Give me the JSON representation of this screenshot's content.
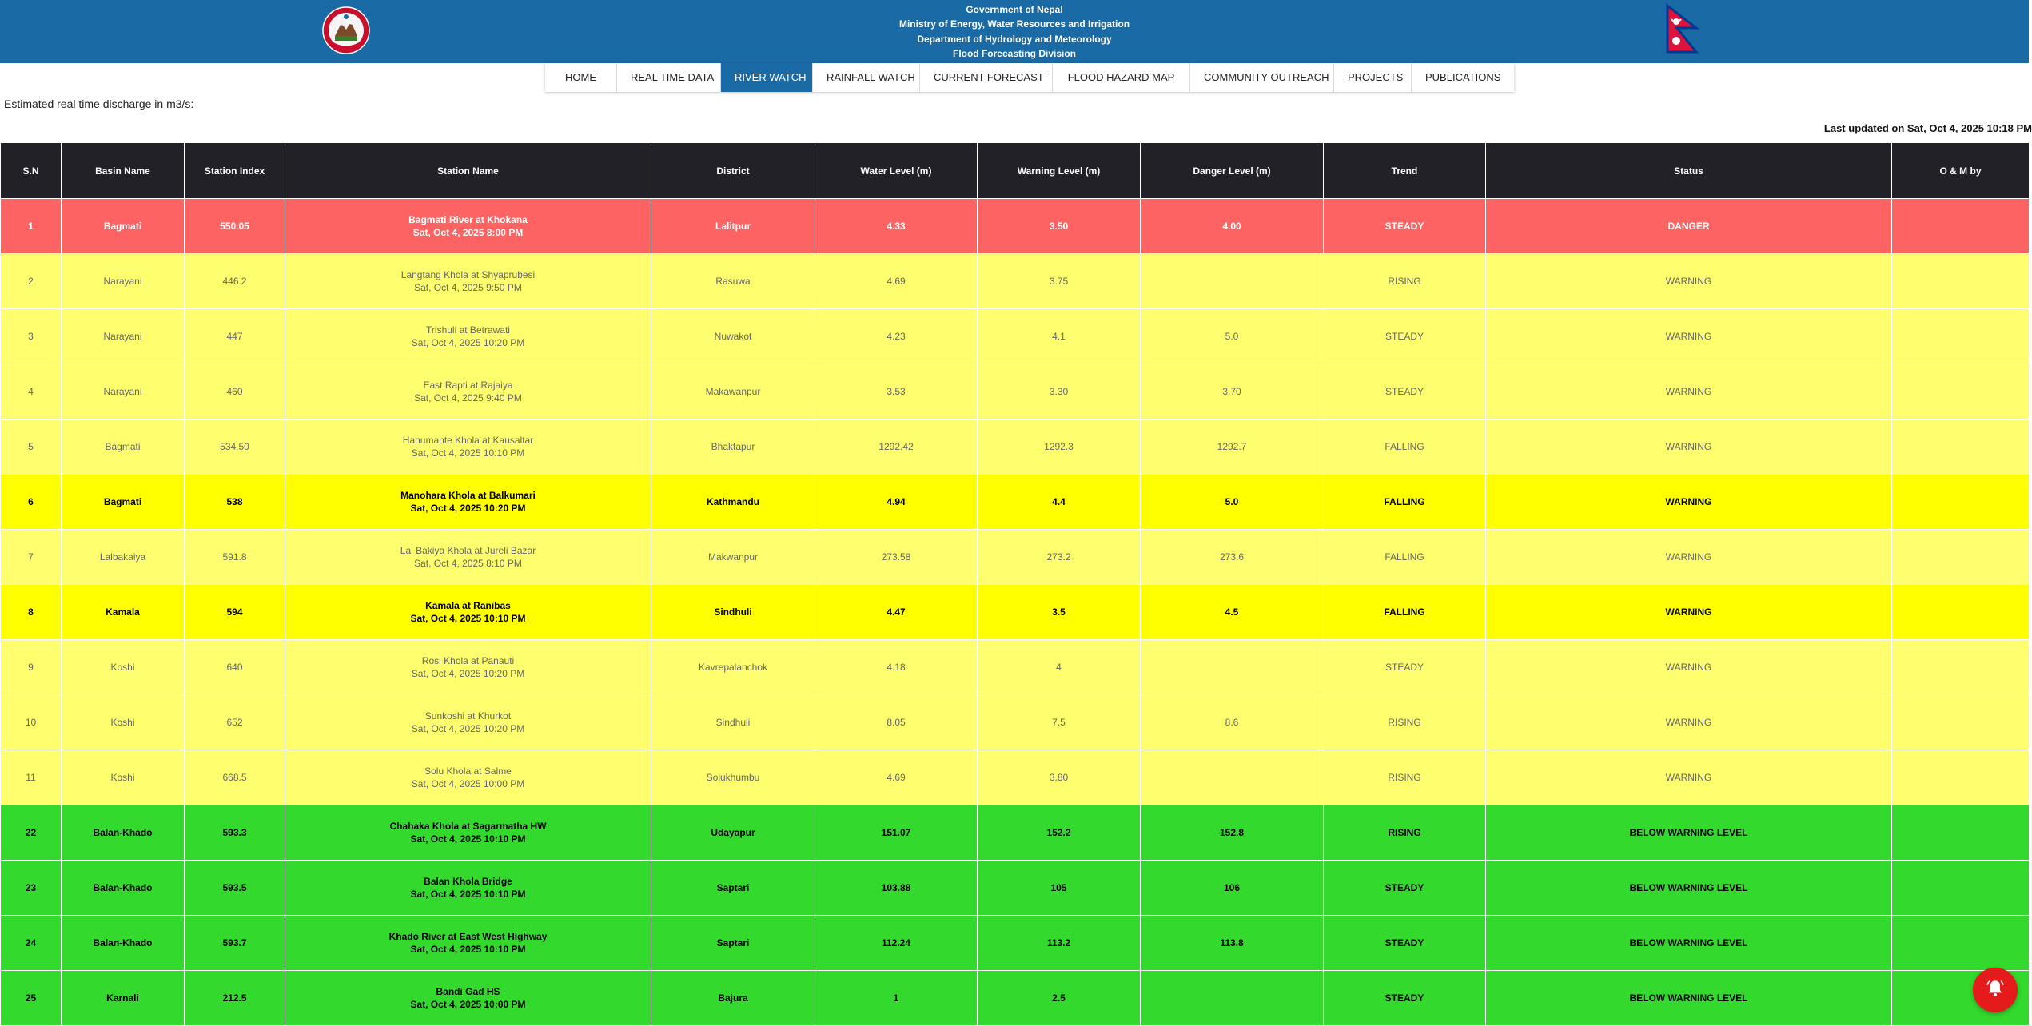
{
  "header": {
    "lines": [
      "Government of Nepal",
      "Ministry of Energy, Water Resources and Irrigation",
      "Department of Hydrology and Meteorology",
      "Flood Forecasting Division"
    ]
  },
  "nav": {
    "items": [
      {
        "label": "HOME",
        "active": false
      },
      {
        "label": "REAL TIME DATA",
        "active": false
      },
      {
        "label": "RIVER WATCH",
        "active": true
      },
      {
        "label": "RAINFALL WATCH",
        "active": false
      },
      {
        "label": "CURRENT FORECAST",
        "active": false
      },
      {
        "label": "FLOOD HAZARD MAP",
        "active": false
      },
      {
        "label": "COMMUNITY OUTREACH",
        "active": false
      },
      {
        "label": "PROJECTS",
        "active": false
      },
      {
        "label": "PUBLICATIONS",
        "active": false
      }
    ]
  },
  "subtitle": "Estimated real time discharge in m3/s:",
  "last_updated": "Last updated on Sat, Oct 4, 2025 10:18 PM",
  "table": {
    "headers": [
      "S.N",
      "Basin Name",
      "Station Index",
      "Station Name",
      "District",
      "Water Level (m)",
      "Warning Level (m)",
      "Danger Level (m)",
      "Trend",
      "Status",
      "O & M by"
    ],
    "rows": [
      {
        "sn": "1",
        "basin": "Bagmati",
        "index": "550.05",
        "station": "Bagmati River at Khokana",
        "time": "Sat, Oct 4, 2025 8:00 PM",
        "district": "Lalitpur",
        "water": "4.33",
        "warning": "3.50",
        "danger": "4.00",
        "trend": "STEADY",
        "status": "DANGER",
        "om": "",
        "style": "danger"
      },
      {
        "sn": "2",
        "basin": "Narayani",
        "index": "446.2",
        "station": "Langtang Khola at Shyaprubesi",
        "time": "Sat, Oct 4, 2025 9:50 PM",
        "district": "Rasuwa",
        "water": "4.69",
        "warning": "3.75",
        "danger": "",
        "trend": "RISING",
        "status": "WARNING",
        "om": "",
        "style": "warn-light"
      },
      {
        "sn": "3",
        "basin": "Narayani",
        "index": "447",
        "station": "Trishuli at Betrawati",
        "time": "Sat, Oct 4, 2025 10:20 PM",
        "district": "Nuwakot",
        "water": "4.23",
        "warning": "4.1",
        "danger": "5.0",
        "trend": "STEADY",
        "status": "WARNING",
        "om": "",
        "style": "warn-light"
      },
      {
        "sn": "4",
        "basin": "Narayani",
        "index": "460",
        "station": "East Rapti at Rajaiya",
        "time": "Sat, Oct 4, 2025 9:40 PM",
        "district": "Makawanpur",
        "water": "3.53",
        "warning": "3.30",
        "danger": "3.70",
        "trend": "STEADY",
        "status": "WARNING",
        "om": "",
        "style": "warn-light"
      },
      {
        "sn": "5",
        "basin": "Bagmati",
        "index": "534.50",
        "station": "Hanumante Khola at Kausaltar",
        "time": "Sat, Oct 4, 2025 10:10 PM",
        "district": "Bhaktapur",
        "water": "1292.42",
        "warning": "1292.3",
        "danger": "1292.7",
        "trend": "FALLING",
        "status": "WARNING",
        "om": "",
        "style": "warn-light"
      },
      {
        "sn": "6",
        "basin": "Bagmati",
        "index": "538",
        "station": "Manohara Khola at Balkumari",
        "time": "Sat, Oct 4, 2025 10:20 PM",
        "district": "Kathmandu",
        "water": "4.94",
        "warning": "4.4",
        "danger": "5.0",
        "trend": "FALLING",
        "status": "WARNING",
        "om": "",
        "style": "warn-strong"
      },
      {
        "sn": "7",
        "basin": "Lalbakaiya",
        "index": "591.8",
        "station": "Lal Bakiya Khola at Jureli Bazar",
        "time": "Sat, Oct 4, 2025 8:10 PM",
        "district": "Makwanpur",
        "water": "273.58",
        "warning": "273.2",
        "danger": "273.6",
        "trend": "FALLING",
        "status": "WARNING",
        "om": "",
        "style": "warn-light"
      },
      {
        "sn": "8",
        "basin": "Kamala",
        "index": "594",
        "station": "Kamala at Ranibas",
        "time": "Sat, Oct 4, 2025 10:10 PM",
        "district": "Sindhuli",
        "water": "4.47",
        "warning": "3.5",
        "danger": "4.5",
        "trend": "FALLING",
        "status": "WARNING",
        "om": "",
        "style": "warn-strong"
      },
      {
        "sn": "9",
        "basin": "Koshi",
        "index": "640",
        "station": "Rosi Khola at Panauti",
        "time": "Sat, Oct 4, 2025 10:20 PM",
        "district": "Kavrepalanchok",
        "water": "4.18",
        "warning": "4",
        "danger": "",
        "trend": "STEADY",
        "status": "WARNING",
        "om": "",
        "style": "warn-light"
      },
      {
        "sn": "10",
        "basin": "Koshi",
        "index": "652",
        "station": "Sunkoshi at Khurkot",
        "time": "Sat, Oct 4, 2025 10:20 PM",
        "district": "Sindhuli",
        "water": "8.05",
        "warning": "7.5",
        "danger": "8.6",
        "trend": "RISING",
        "status": "WARNING",
        "om": "",
        "style": "warn-light"
      },
      {
        "sn": "11",
        "basin": "Koshi",
        "index": "668.5",
        "station": "Solu Khola at Salme",
        "time": "Sat, Oct 4, 2025 10:00 PM",
        "district": "Solukhumbu",
        "water": "4.69",
        "warning": "3.80",
        "danger": "",
        "trend": "RISING",
        "status": "WARNING",
        "om": "",
        "style": "warn-light"
      },
      {
        "sn": "22",
        "basin": "Balan-Khado",
        "index": "593.3",
        "station": "Chahaka Khola at Sagarmatha HW",
        "time": "Sat, Oct 4, 2025 10:10 PM",
        "district": "Udayapur",
        "water": "151.07",
        "warning": "152.2",
        "danger": "152.8",
        "trend": "RISING",
        "status": "BELOW WARNING LEVEL",
        "om": "",
        "style": "below"
      },
      {
        "sn": "23",
        "basin": "Balan-Khado",
        "index": "593.5",
        "station": "Balan Khola Bridge",
        "time": "Sat, Oct 4, 2025 10:10 PM",
        "district": "Saptari",
        "water": "103.88",
        "warning": "105",
        "danger": "106",
        "trend": "STEADY",
        "status": "BELOW WARNING LEVEL",
        "om": "",
        "style": "below"
      },
      {
        "sn": "24",
        "basin": "Balan-Khado",
        "index": "593.7",
        "station": "Khado River at East West Highway",
        "time": "Sat, Oct 4, 2025 10:10 PM",
        "district": "Saptari",
        "water": "112.24",
        "warning": "113.2",
        "danger": "113.8",
        "trend": "STEADY",
        "status": "BELOW WARNING LEVEL",
        "om": "",
        "style": "below"
      },
      {
        "sn": "25",
        "basin": "Karnali",
        "index": "212.5",
        "station": "Bandi Gad HS",
        "time": "Sat, Oct 4, 2025 10:00 PM",
        "district": "Bajura",
        "water": "1",
        "warning": "2.5",
        "danger": "",
        "trend": "STEADY",
        "status": "BELOW WARNING LEVEL",
        "om": "",
        "style": "below"
      }
    ]
  },
  "icons": {
    "emblem": "nepal-emblem-icon",
    "flag": "nepal-flag-icon",
    "fab": "bell-icon"
  },
  "colors": {
    "header_bg": "#1a6aa6",
    "table_header_bg": "#222128",
    "danger": "#fe6363",
    "warning_light": "#fefe6e",
    "warning_strong": "#ffff00",
    "below_warning": "#33d92d",
    "fab": "#e51a1a"
  }
}
